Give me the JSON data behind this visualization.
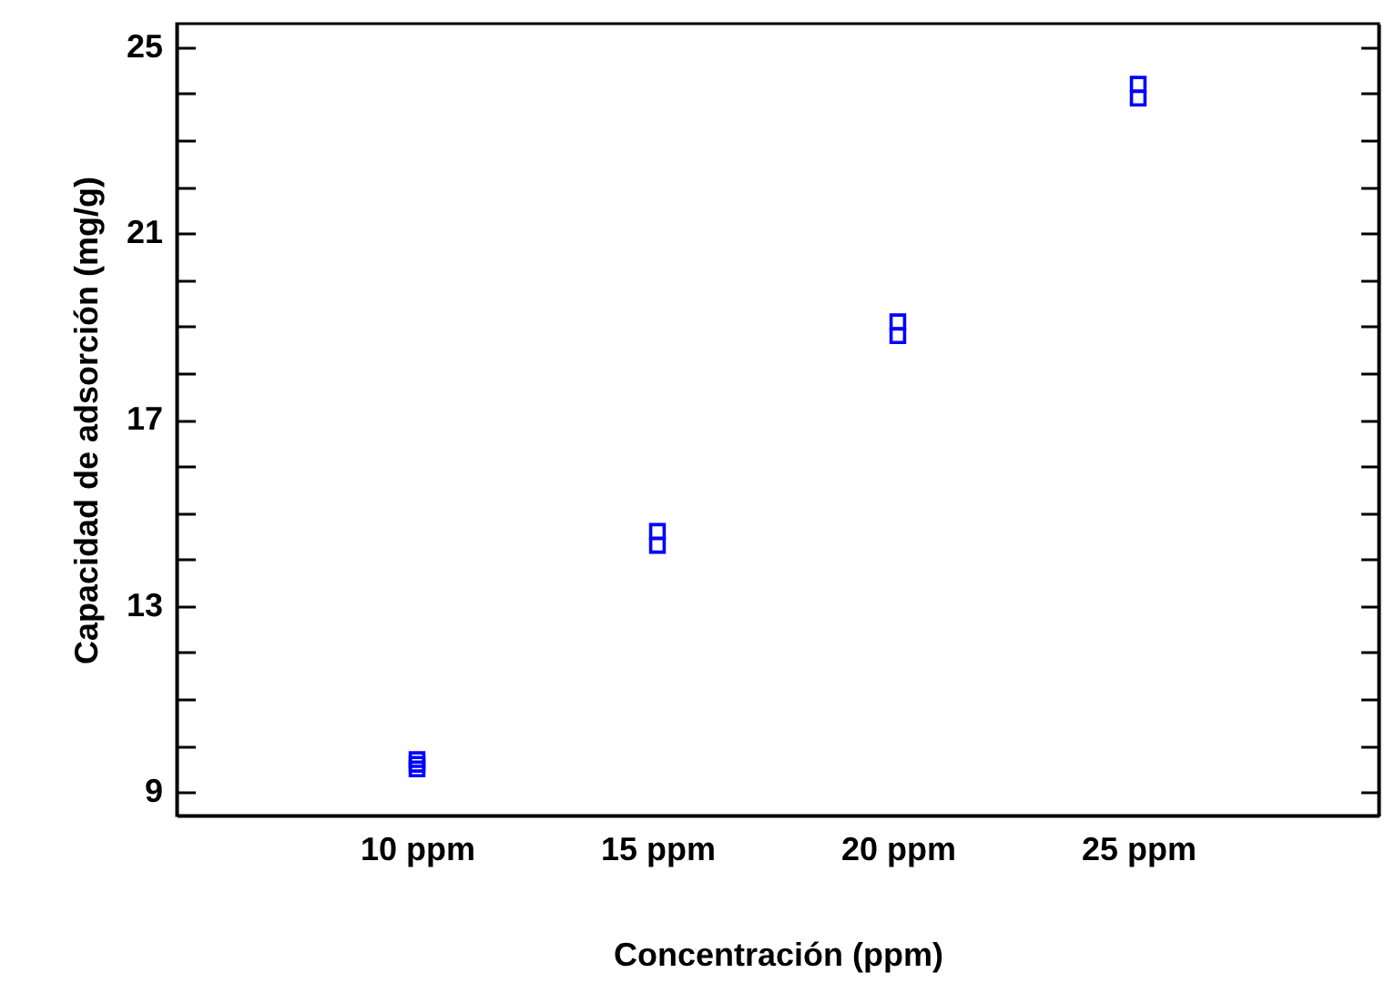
{
  "chart_data": {
    "type": "scatter",
    "xlabel": "Concentración (ppm)",
    "ylabel": "Capacidad de adsorción (mg/g)",
    "categories": [
      "10 ppm",
      "15 ppm",
      "20 ppm",
      "25 ppm"
    ],
    "series": [
      {
        "color": "#0000ff",
        "x": [
          "10 ppm",
          "10 ppm",
          "10 ppm",
          "15 ppm",
          "15 ppm",
          "20 ppm",
          "20 ppm",
          "25 ppm",
          "25 ppm"
        ],
        "values": [
          9.7,
          9.6,
          9.5,
          14.6,
          14.3,
          19.1,
          18.8,
          24.2,
          23.9
        ]
      }
    ],
    "ylim": [
      8.5,
      25.5
    ],
    "yticks": [
      9,
      {
        "value": 10,
        "label": null
      },
      {
        "value": 11,
        "label": null
      },
      {
        "value": 12,
        "label": null
      },
      13,
      {
        "value": 14,
        "label": null
      },
      {
        "value": 15,
        "label": null
      },
      {
        "value": 16,
        "label": null
      },
      17,
      {
        "value": 18,
        "label": null
      },
      {
        "value": 19,
        "label": null
      },
      {
        "value": 20,
        "label": null
      },
      21,
      {
        "value": 22,
        "label": null
      },
      {
        "value": 23,
        "label": null
      },
      {
        "value": 24,
        "label": null
      },
      25
    ],
    "grid": false,
    "marker": "square"
  }
}
